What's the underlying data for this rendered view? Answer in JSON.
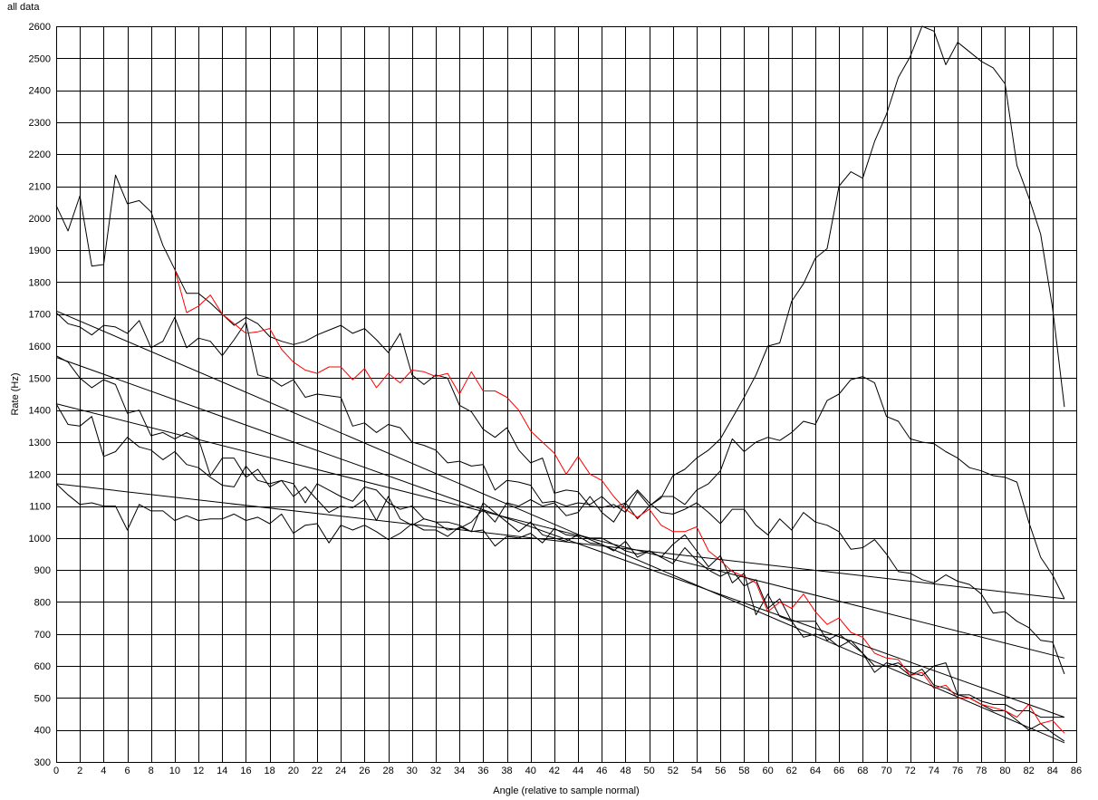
{
  "chart_data": {
    "type": "line",
    "title": "all data",
    "xlabel": "Angle (relative to sample normal)",
    "ylabel": "Rate (Hz)",
    "xlim": [
      0,
      86
    ],
    "ylim": [
      300,
      2600
    ],
    "xticks": [
      0,
      2,
      4,
      6,
      8,
      10,
      12,
      14,
      16,
      18,
      20,
      22,
      24,
      26,
      28,
      30,
      32,
      34,
      36,
      38,
      40,
      42,
      44,
      46,
      48,
      50,
      52,
      54,
      56,
      58,
      60,
      62,
      64,
      66,
      68,
      70,
      72,
      74,
      76,
      78,
      80,
      82,
      84,
      86
    ],
    "yticks": [
      300,
      400,
      500,
      600,
      700,
      800,
      900,
      1000,
      1100,
      1200,
      1300,
      1400,
      1500,
      1600,
      1700,
      1800,
      1900,
      2000,
      2100,
      2200,
      2300,
      2400,
      2500,
      2600
    ],
    "grid": true,
    "series": [
      {
        "color": "#000000",
        "x": [
          0,
          1,
          2,
          3,
          4,
          5,
          6,
          7,
          8,
          9,
          10,
          11,
          12,
          13,
          14,
          15,
          16,
          17,
          18,
          19,
          20,
          21,
          22,
          23,
          24,
          25,
          26,
          27,
          28,
          29,
          30,
          31,
          32,
          33,
          34,
          35,
          36,
          37,
          38,
          39,
          40,
          41,
          42,
          43,
          44,
          45,
          46,
          47,
          48,
          49,
          50,
          51,
          52,
          53,
          54,
          55,
          56,
          57,
          58,
          59,
          60,
          61,
          62,
          63,
          64,
          65,
          66,
          67,
          68,
          69,
          70,
          71,
          72,
          73,
          74,
          75,
          76,
          77,
          78,
          79,
          80,
          81,
          82,
          83,
          84,
          85
        ],
        "y": [
          2040,
          1960,
          2070,
          1850,
          1855,
          2135,
          2045,
          2055,
          2020,
          1915,
          1840,
          1765,
          1765,
          1735,
          1700,
          1665,
          1690,
          1670,
          1630,
          1615,
          1605,
          1615,
          1635,
          1650,
          1665,
          1640,
          1655,
          1620,
          1580,
          1640,
          1510,
          1480,
          1510,
          1500,
          1415,
          1395,
          1340,
          1315,
          1345,
          1275,
          1235,
          1250,
          1140,
          1150,
          1145,
          1100,
          1095,
          1105,
          1080,
          1145,
          1100,
          1125,
          1195,
          1215,
          1250,
          1275,
          1310,
          1375,
          1440,
          1510,
          1600,
          1610,
          1740,
          1795,
          1875,
          1905,
          2100,
          2145,
          2125,
          2240,
          2325,
          2440,
          2505,
          2600,
          2585,
          2480,
          2550,
          2520,
          2490,
          2470,
          2420,
          2165,
          2065,
          1950,
          1720,
          1410
        ]
      },
      {
        "color": "#000000",
        "x": [
          0,
          1,
          2,
          3,
          4,
          5,
          6,
          7,
          8,
          9,
          10,
          11,
          12,
          13,
          14,
          15,
          16,
          17,
          18,
          19,
          20,
          21,
          22,
          23,
          24,
          25,
          26,
          27,
          28,
          29,
          30,
          31,
          32,
          33,
          34,
          35,
          36,
          37,
          38,
          39,
          40,
          41,
          42,
          43,
          44,
          45,
          46,
          47,
          48,
          49,
          50,
          51,
          52,
          53,
          54,
          55,
          56,
          57,
          58,
          59,
          60,
          61,
          62,
          63,
          64,
          65,
          66,
          67,
          68,
          69,
          70,
          71,
          72,
          73,
          74,
          75,
          76,
          77,
          78,
          79,
          80,
          81,
          82,
          83,
          84,
          85
        ],
        "y": [
          1705,
          1670,
          1660,
          1635,
          1665,
          1660,
          1640,
          1680,
          1595,
          1615,
          1690,
          1595,
          1625,
          1615,
          1570,
          1620,
          1675,
          1510,
          1500,
          1475,
          1495,
          1440,
          1450,
          1445,
          1440,
          1350,
          1360,
          1330,
          1355,
          1345,
          1300,
          1290,
          1275,
          1235,
          1240,
          1225,
          1230,
          1150,
          1180,
          1175,
          1165,
          1110,
          1115,
          1100,
          1110,
          1105,
          1130,
          1095,
          1110,
          1150,
          1110,
          1080,
          1075,
          1090,
          1110,
          1080,
          1045,
          1090,
          1090,
          1040,
          1010,
          1060,
          1025,
          1080,
          1050,
          1040,
          1020,
          965,
          970,
          995,
          950,
          895,
          890,
          870,
          860,
          885,
          865,
          855,
          825,
          765,
          770,
          740,
          720,
          680,
          675,
          575
        ]
      },
      {
        "color": "#000000",
        "x": [
          0,
          1,
          2,
          3,
          4,
          5,
          6,
          7,
          8,
          9,
          10,
          11,
          12,
          13,
          14,
          15,
          16,
          17,
          18,
          19,
          20,
          21,
          22,
          23,
          24,
          25,
          26,
          27,
          28,
          29,
          30,
          31,
          32,
          33,
          34,
          35,
          36,
          37,
          38,
          39,
          40,
          41,
          42,
          43,
          44,
          45,
          46,
          47,
          48,
          49,
          50,
          51,
          52,
          53,
          54,
          55,
          56,
          57,
          58,
          59,
          60,
          61,
          62,
          63,
          64,
          65,
          66,
          67,
          68,
          69,
          70,
          71,
          72,
          73,
          74,
          75,
          76,
          77,
          78,
          79,
          80,
          81,
          82,
          83,
          84,
          85
        ],
        "y": [
          1570,
          1550,
          1500,
          1470,
          1495,
          1480,
          1390,
          1400,
          1320,
          1330,
          1310,
          1330,
          1310,
          1195,
          1250,
          1250,
          1190,
          1215,
          1160,
          1180,
          1170,
          1110,
          1170,
          1150,
          1130,
          1115,
          1160,
          1150,
          1110,
          1090,
          1100,
          1060,
          1050,
          1025,
          1030,
          1050,
          1090,
          1050,
          1110,
          1100,
          1120,
          1100,
          1110,
          1070,
          1080,
          1130,
          1080,
          1050,
          1110,
          1060,
          1100,
          1130,
          1130,
          1105,
          1150,
          1170,
          1210,
          1310,
          1270,
          1300,
          1315,
          1305,
          1330,
          1365,
          1355,
          1430,
          1450,
          1495,
          1505,
          1485,
          1380,
          1365,
          1310,
          1300,
          1295,
          1270,
          1250,
          1220,
          1210,
          1195,
          1190,
          1175,
          1050,
          940,
          885,
          810
        ]
      },
      {
        "color": "#000000",
        "x": [
          0,
          1,
          2,
          3,
          4,
          5,
          6,
          7,
          8,
          9,
          10,
          11,
          12,
          13,
          14,
          15,
          16,
          17,
          18,
          19,
          20,
          21,
          22,
          23,
          24,
          25,
          26,
          27,
          28,
          29,
          30,
          31,
          32,
          33,
          34,
          35,
          36,
          37,
          38,
          39,
          40,
          41,
          42,
          43,
          44,
          45,
          46,
          47,
          48,
          49,
          50,
          51,
          52,
          53,
          54,
          55,
          56,
          57,
          58,
          59,
          60,
          61,
          62,
          63,
          64,
          65,
          66,
          67,
          68,
          69,
          70,
          71,
          72,
          73,
          74,
          75,
          76,
          77,
          78,
          79,
          80,
          81,
          82,
          83,
          84,
          85
        ],
        "y": [
          1420,
          1355,
          1350,
          1380,
          1255,
          1270,
          1315,
          1285,
          1275,
          1245,
          1270,
          1230,
          1220,
          1190,
          1165,
          1160,
          1225,
          1180,
          1170,
          1180,
          1130,
          1160,
          1120,
          1080,
          1100,
          1095,
          1120,
          1055,
          1130,
          1060,
          1040,
          1060,
          1050,
          1050,
          1040,
          1020,
          1110,
          1080,
          1050,
          1020,
          1050,
          1010,
          1000,
          990,
          1010,
          1000,
          1000,
          980,
          960,
          950,
          960,
          940,
          920,
          970,
          930,
          900,
          880,
          900,
          850,
          870,
          780,
          810,
          740,
          740,
          740,
          680,
          700,
          670,
          640,
          600,
          600,
          610,
          580,
          570,
          600,
          610,
          510,
          510,
          490,
          480,
          480,
          460,
          460,
          440,
          440,
          440
        ]
      },
      {
        "color": "#000000",
        "x": [
          0,
          1,
          2,
          3,
          4,
          5,
          6,
          7,
          8,
          9,
          10,
          11,
          12,
          13,
          14,
          15,
          16,
          17,
          18,
          19,
          20,
          21,
          22,
          23,
          24,
          25,
          26,
          27,
          28,
          29,
          30,
          31,
          32,
          33,
          34,
          35,
          36,
          37,
          38,
          39,
          40,
          41,
          42,
          43,
          44,
          45,
          46,
          47,
          48,
          49,
          50,
          51,
          52,
          53,
          54,
          55,
          56,
          57,
          58,
          59,
          60,
          61,
          62,
          63,
          64,
          65,
          66,
          67,
          68,
          69,
          70,
          71,
          72,
          73,
          74,
          75,
          76,
          77,
          78,
          79,
          80,
          81,
          82,
          83,
          84,
          85
        ],
        "y": [
          1170,
          1135,
          1105,
          1110,
          1100,
          1100,
          1025,
          1105,
          1085,
          1085,
          1055,
          1070,
          1055,
          1060,
          1060,
          1075,
          1055,
          1065,
          1045,
          1075,
          1015,
          1040,
          1045,
          985,
          1040,
          1025,
          1040,
          1020,
          995,
          1015,
          1045,
          1025,
          1025,
          1005,
          1035,
          1020,
          1025,
          975,
          1005,
          1000,
          1015,
          985,
          1030,
          1010,
          1005,
          985,
          980,
          960,
          990,
          940,
          960,
          940,
          980,
          1010,
          960,
          910,
          945,
          860,
          890,
          760,
          825,
          755,
          740,
          690,
          700,
          690,
          660,
          680,
          640,
          580,
          610,
          600,
          570,
          590,
          540,
          530,
          510,
          500,
          480,
          460,
          460,
          430,
          400,
          420,
          390,
          365
        ]
      },
      {
        "color": "#ff0000",
        "x": [
          10,
          11,
          12,
          13,
          14,
          15,
          16,
          17,
          18,
          19,
          20,
          21,
          22,
          23,
          24,
          25,
          26,
          27,
          28,
          29,
          30,
          31,
          32,
          33,
          34,
          35,
          36,
          37,
          38,
          39,
          40,
          41,
          42,
          43,
          44,
          45,
          46,
          47,
          48,
          49,
          50,
          51,
          52,
          53,
          54,
          55,
          56,
          57,
          58,
          59,
          60,
          61,
          62,
          63,
          64,
          65,
          66,
          67,
          68,
          69,
          70,
          71,
          72,
          73,
          74,
          75,
          76,
          77,
          78,
          79,
          80,
          81,
          82,
          83,
          84,
          85
        ],
        "y": [
          1840,
          1705,
          1725,
          1760,
          1700,
          1670,
          1640,
          1645,
          1655,
          1590,
          1550,
          1525,
          1515,
          1535,
          1535,
          1495,
          1530,
          1470,
          1515,
          1485,
          1525,
          1520,
          1505,
          1515,
          1450,
          1520,
          1460,
          1460,
          1440,
          1400,
          1335,
          1300,
          1265,
          1200,
          1255,
          1200,
          1180,
          1130,
          1090,
          1065,
          1090,
          1040,
          1020,
          1020,
          1035,
          960,
          930,
          895,
          880,
          860,
          770,
          800,
          780,
          825,
          770,
          730,
          750,
          705,
          690,
          640,
          625,
          620,
          570,
          580,
          530,
          540,
          500,
          500,
          480,
          470,
          460,
          440,
          480,
          420,
          430,
          390
        ]
      },
      {
        "color": "#000000",
        "x": [
          0,
          85
        ],
        "y": [
          1710,
          360
        ]
      },
      {
        "color": "#000000",
        "x": [
          0,
          85
        ],
        "y": [
          1565,
          440
        ]
      },
      {
        "color": "#000000",
        "x": [
          0,
          85
        ],
        "y": [
          1420,
          625
        ]
      },
      {
        "color": "#000000",
        "x": [
          0,
          85
        ],
        "y": [
          1170,
          810
        ]
      }
    ]
  }
}
